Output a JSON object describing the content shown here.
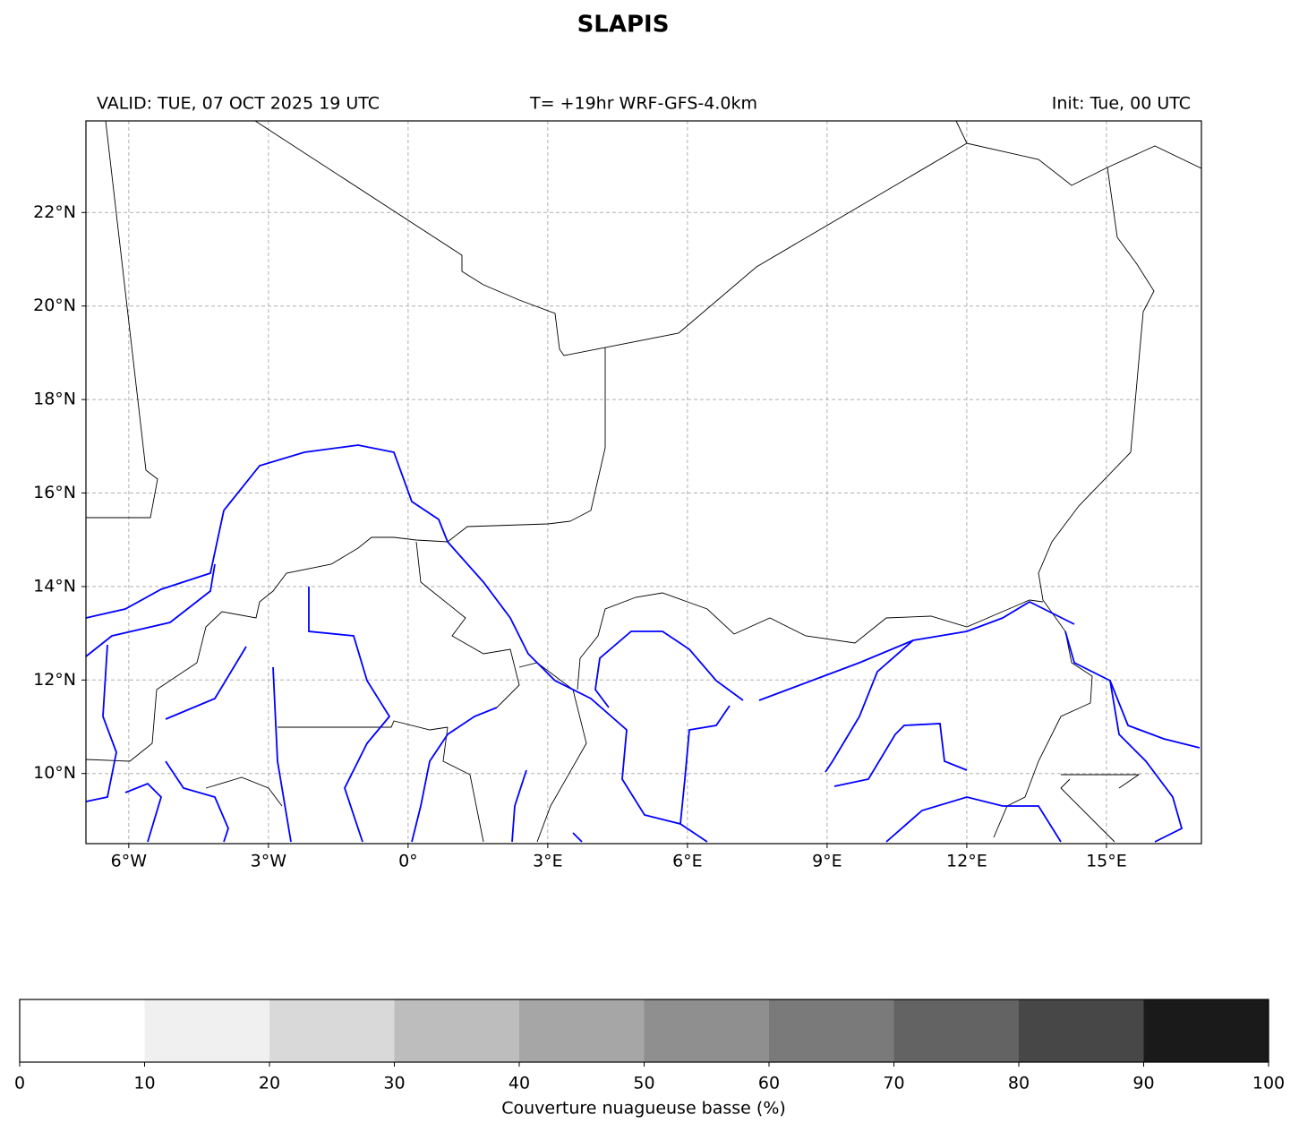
{
  "header": {
    "title": "SLAPIS",
    "valid": "VALID: TUE, 07 OCT 2025 19 UTC",
    "run": "T= +19hr WRF-GFS-4.0km",
    "init": "Init: Tue, 00 UTC"
  },
  "map": {
    "xlim": [
      -6.92,
      17.04
    ],
    "ylim": [
      8.5,
      23.96
    ],
    "xticks": [
      {
        "value": -6,
        "label": "6°W"
      },
      {
        "value": -3,
        "label": "3°W"
      },
      {
        "value": 0,
        "label": "0°"
      },
      {
        "value": 3,
        "label": "3°E"
      },
      {
        "value": 6,
        "label": "6°E"
      },
      {
        "value": 9,
        "label": "9°E"
      },
      {
        "value": 12,
        "label": "12°E"
      },
      {
        "value": 15,
        "label": "15°E"
      }
    ],
    "yticks": [
      {
        "value": 10,
        "label": "10°N"
      },
      {
        "value": 12,
        "label": "12°N"
      },
      {
        "value": 14,
        "label": "14°N"
      },
      {
        "value": 16,
        "label": "16°N"
      },
      {
        "value": 18,
        "label": "18°N"
      },
      {
        "value": 20,
        "label": "20°N"
      },
      {
        "value": 22,
        "label": "22°N"
      }
    ],
    "grid": true
  },
  "colorbar": {
    "label": "Couverture nuagueuse basse (%)",
    "ticks": [
      0,
      10,
      20,
      30,
      40,
      50,
      60,
      70,
      80,
      90,
      100
    ],
    "colors": [
      "#ffffff",
      "#f0f0f0",
      "#d9d9d9",
      "#bdbdbd",
      "#a6a6a6",
      "#8f8f8f",
      "#7a7a7a",
      "#636363",
      "#474747",
      "#1a1a1a"
    ]
  }
}
